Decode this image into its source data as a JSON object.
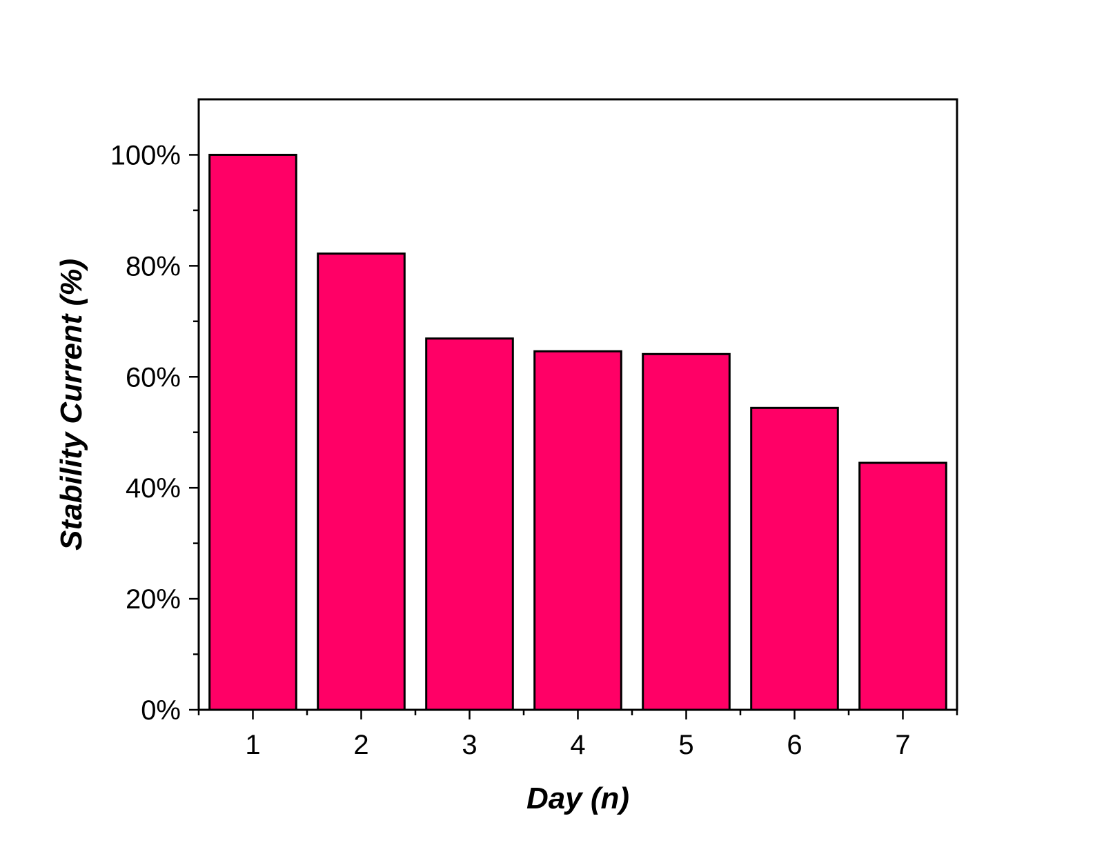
{
  "chart_data": {
    "type": "bar",
    "categories": [
      "1",
      "2",
      "3",
      "4",
      "5",
      "6",
      "7"
    ],
    "series": [
      {
        "values": [
          100,
          82.2,
          66.9,
          64.6,
          64.1,
          54.4,
          44.5
        ],
        "color": "#ff0066"
      }
    ],
    "xlabel": "Day (n)",
    "ylabel": "Stability Current (%)",
    "ylim": [
      0,
      110
    ],
    "yticks": [
      0,
      20,
      40,
      60,
      80,
      100
    ],
    "ytick_labels": [
      "0%",
      "20%",
      "40%",
      "60%",
      "80%",
      "100%"
    ],
    "grid": false,
    "legend": "none"
  }
}
